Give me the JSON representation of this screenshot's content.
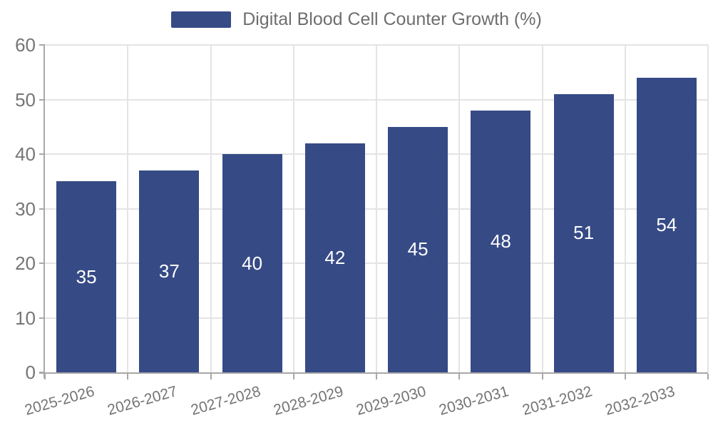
{
  "chart_data": {
    "type": "bar",
    "title": "Digital Blood Cell Counter Growth (%)",
    "categories": [
      "2025-2026",
      "2026-2027",
      "2027-2028",
      "2028-2029",
      "2029-2030",
      "2030-2031",
      "2031-2032",
      "2032-2033"
    ],
    "values": [
      35,
      37,
      40,
      42,
      45,
      48,
      51,
      54
    ],
    "xlabel": "",
    "ylabel": "",
    "ylim": [
      0,
      60
    ],
    "yticks": [
      0,
      10,
      20,
      30,
      40,
      50,
      60
    ],
    "grid": true,
    "legend_position": "top-center",
    "colors": {
      "bar": "#364A86",
      "grid": "#E4E4E4",
      "axis": "#A8A8A8",
      "tick_label": "#757575",
      "legend_text": "#6E6E6E",
      "value_label": "#FFFFFF",
      "background": "#FFFFFF"
    }
  }
}
